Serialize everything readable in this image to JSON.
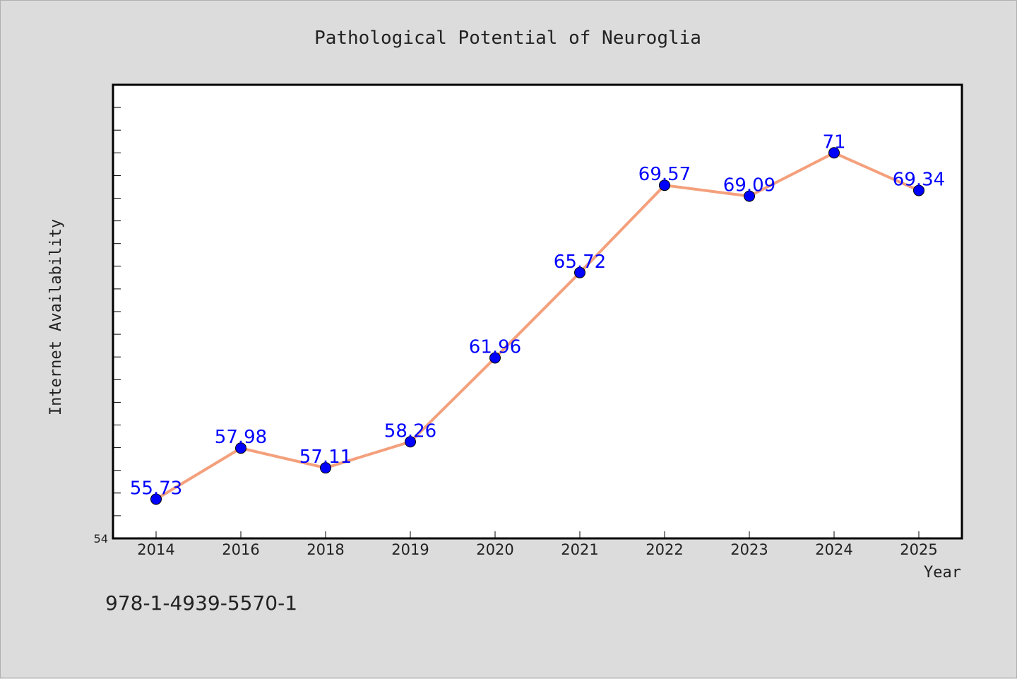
{
  "chart_data": {
    "type": "line",
    "title": "Pathological Potential of Neuroglia",
    "xlabel": "Year",
    "ylabel": "Internet Availability",
    "categories": [
      "2014",
      "2016",
      "2018",
      "2019",
      "2020",
      "2021",
      "2022",
      "2023",
      "2024",
      "2025"
    ],
    "series": [
      {
        "values": [
          55.73,
          57.98,
          57.11,
          58.26,
          61.96,
          65.72,
          69.57,
          69.09,
          71,
          69.34
        ],
        "data_labels": [
          "55.73",
          "57.98",
          "57.11",
          "58.26",
          "61.96",
          "65.72",
          "69.57",
          "69.09",
          "71",
          "69.34"
        ]
      }
    ],
    "ylim": [
      54,
      74
    ],
    "y_tick_labels": [
      "54"
    ],
    "grid": false,
    "legend": "none"
  },
  "footer_text": "978-1-4939-5570-1",
  "colors": {
    "background": "#dcdcdc",
    "plot_background": "#ffffff",
    "line": "#f4a07c",
    "marker": "#0000ff",
    "data_label": "#0000ff",
    "axis": "#000000",
    "text": "#222222"
  }
}
